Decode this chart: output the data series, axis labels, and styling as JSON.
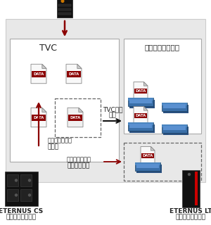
{
  "tvc_label": "TVC",
  "tape_lib_label": "テープライブラリ",
  "arrow_label1": "TVCから",
  "arrow_label2": "削除",
  "ref_low_label1": "参照頻度が低い",
  "ref_low_label2": "データ",
  "ref_low_needed1": "参照頻度が低い",
  "ref_low_needed2": "必要なデータ",
  "eternus_cs": "ETERNUS CS",
  "virtual_tape": "バーチャルテープ",
  "eternus_lt": "ETERNUS LT",
  "tape_lib2": "テープライブラリ",
  "gray_bg": "#e8e8e8",
  "box_border": "#aaaaaa",
  "dark": "#1a1a1a",
  "dark_red": "#8b0000",
  "blue1": "#3a6fa8",
  "blue2": "#4a85c0",
  "blue3": "#2a5080",
  "amber": "#cc7700",
  "red_stripe": "#cc0000",
  "data_label": "DATA"
}
